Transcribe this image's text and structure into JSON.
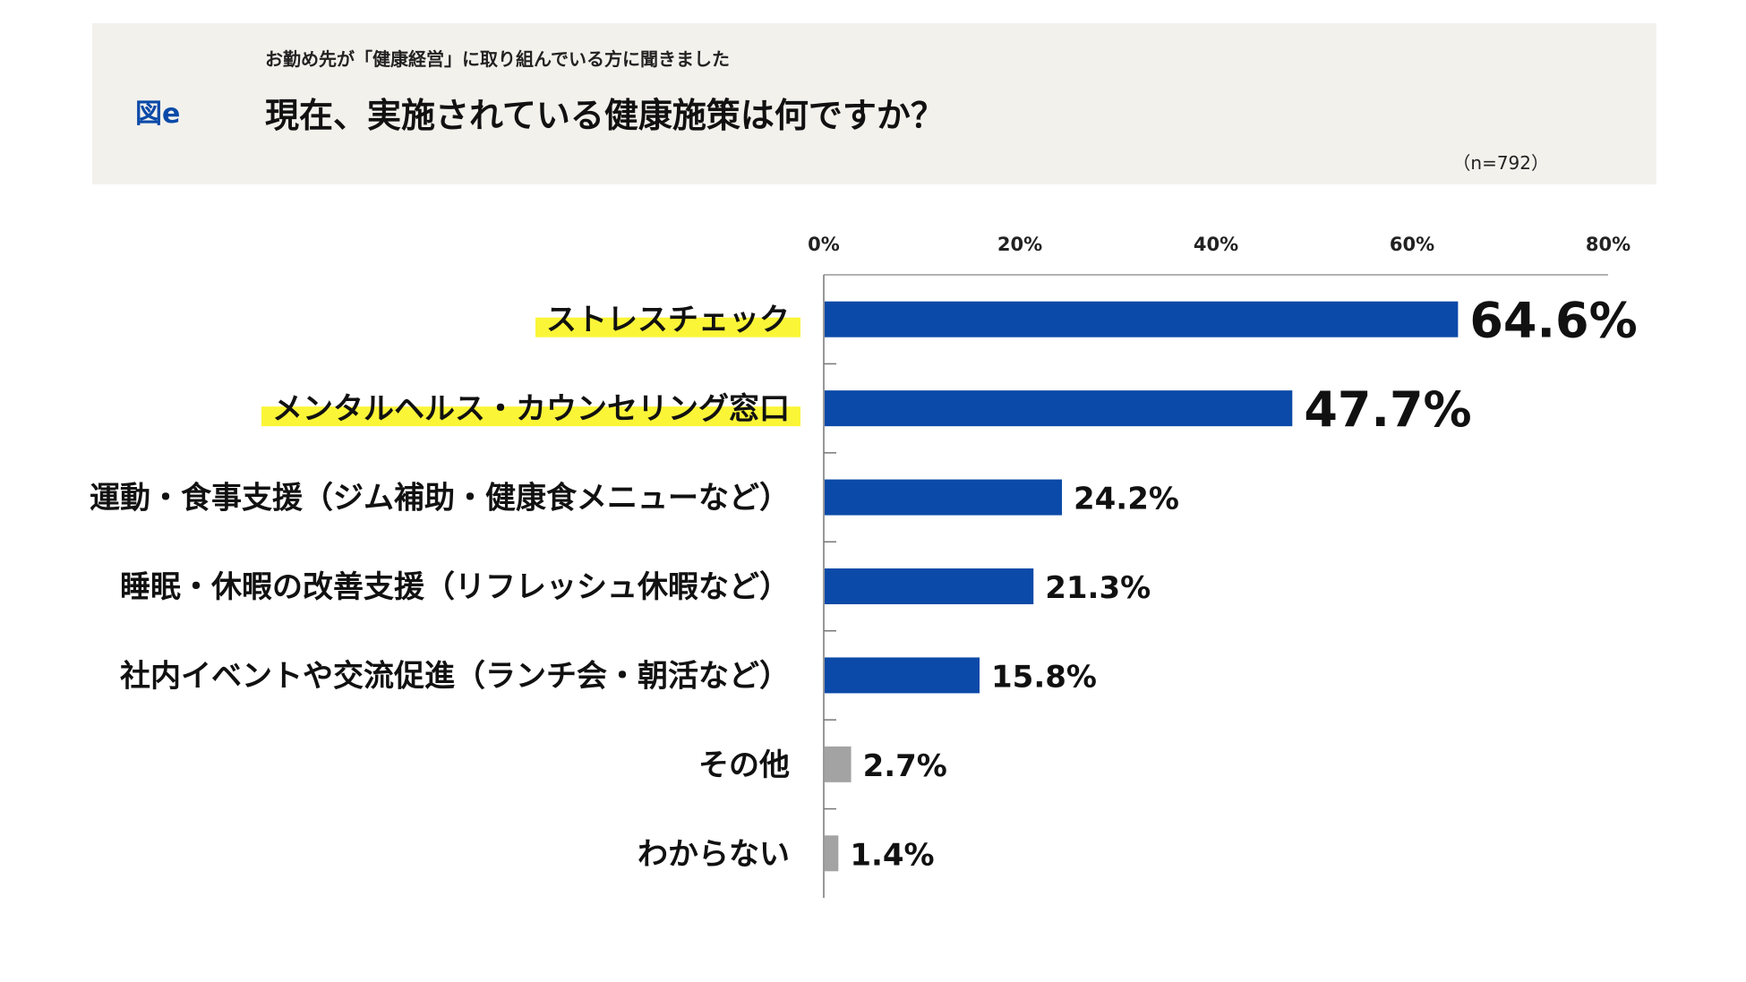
{
  "header": {
    "figure_label": "図e",
    "subtitle": "お勤め先が「健康経営」に取り組んでいる方に聞きました",
    "title": "現在、実施されている健康施策は何ですか？",
    "sample": "（n=792）"
  },
  "colors": {
    "primary_bar": "#0b4aa8",
    "other_bar": "#a3a3a3",
    "highlight": "#fbf538",
    "header_bg": "#f3f1ec"
  },
  "chart_data": {
    "type": "bar",
    "orientation": "horizontal",
    "xlim": [
      0,
      80
    ],
    "ticks": [
      "0%",
      "20%",
      "40%",
      "60%",
      "80%"
    ],
    "categories": [
      "ストレスチェック",
      "メンタルヘルス・カウンセリング窓口",
      "運動・食事支援（ジム補助・健康食メニューなど）",
      "睡眠・休暇の改善支援（リフレッシュ休暇など）",
      "社内イベントや交流促進（ランチ会・朝活など）",
      "その他",
      "わからない"
    ],
    "values": [
      64.6,
      47.7,
      24.2,
      21.3,
      15.8,
      2.7,
      1.4
    ],
    "value_labels": [
      "64.6%",
      "47.7%",
      "24.2%",
      "21.3%",
      "15.8%",
      "2.7%",
      "1.4%"
    ],
    "highlighted": [
      true,
      true,
      false,
      false,
      false,
      false,
      false
    ],
    "bar_color_group": [
      "primary",
      "primary",
      "primary",
      "primary",
      "primary",
      "other",
      "other"
    ]
  }
}
